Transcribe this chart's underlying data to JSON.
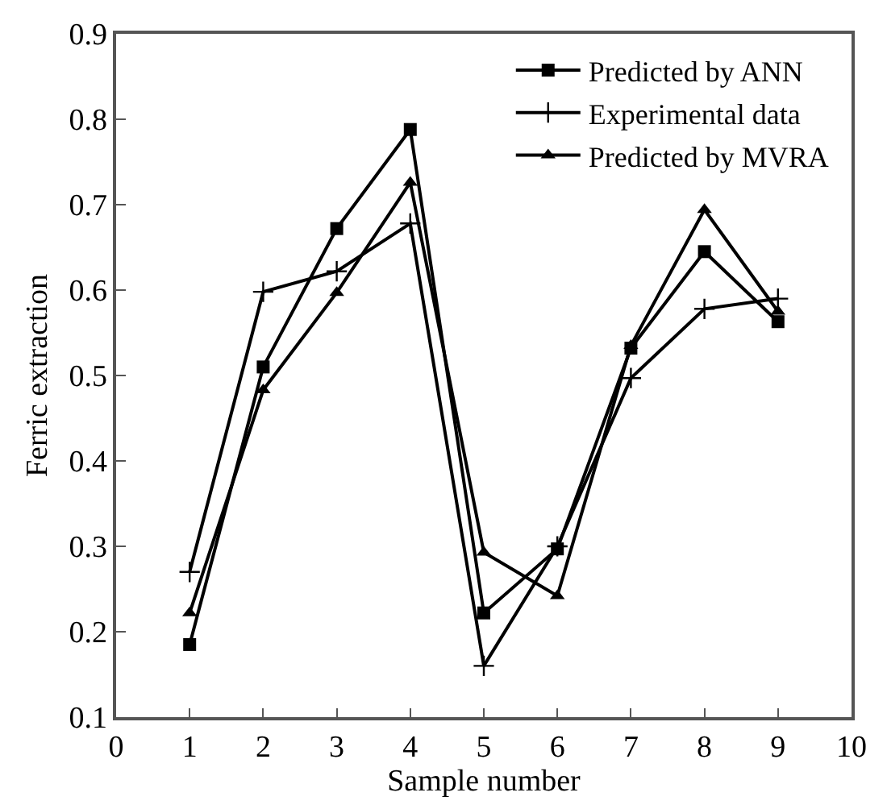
{
  "chart_data": {
    "type": "line",
    "xlabel": "Sample number",
    "ylabel": "Ferric extraction",
    "x": [
      1,
      2,
      3,
      4,
      5,
      6,
      7,
      8,
      9
    ],
    "series": [
      {
        "name": "Predicted by ANN",
        "color": "#000000",
        "marker": "square",
        "values": [
          0.185,
          0.51,
          0.672,
          0.788,
          0.222,
          0.297,
          0.532,
          0.645,
          0.563
        ]
      },
      {
        "name": "Experimental data",
        "color": "#000000",
        "marker": "cross",
        "values": [
          0.27,
          0.598,
          0.622,
          0.678,
          0.16,
          0.3,
          0.497,
          0.578,
          0.59
        ]
      },
      {
        "name": "Predicted by MVRA",
        "color": "#000000",
        "marker": "triangle",
        "values": [
          0.222,
          0.483,
          0.597,
          0.726,
          0.293,
          0.242,
          0.535,
          0.694,
          0.575
        ]
      }
    ],
    "xlim": [
      0,
      10
    ],
    "xticks": [
      0,
      1,
      2,
      3,
      4,
      5,
      6,
      7,
      8,
      9,
      10
    ],
    "ylim": [
      0.1,
      0.9
    ],
    "yticks": [
      0.1,
      0.2,
      0.3,
      0.4,
      0.5,
      0.6,
      0.7,
      0.8,
      0.9
    ],
    "grid": false,
    "legend": "top right",
    "line_style": "solid"
  }
}
